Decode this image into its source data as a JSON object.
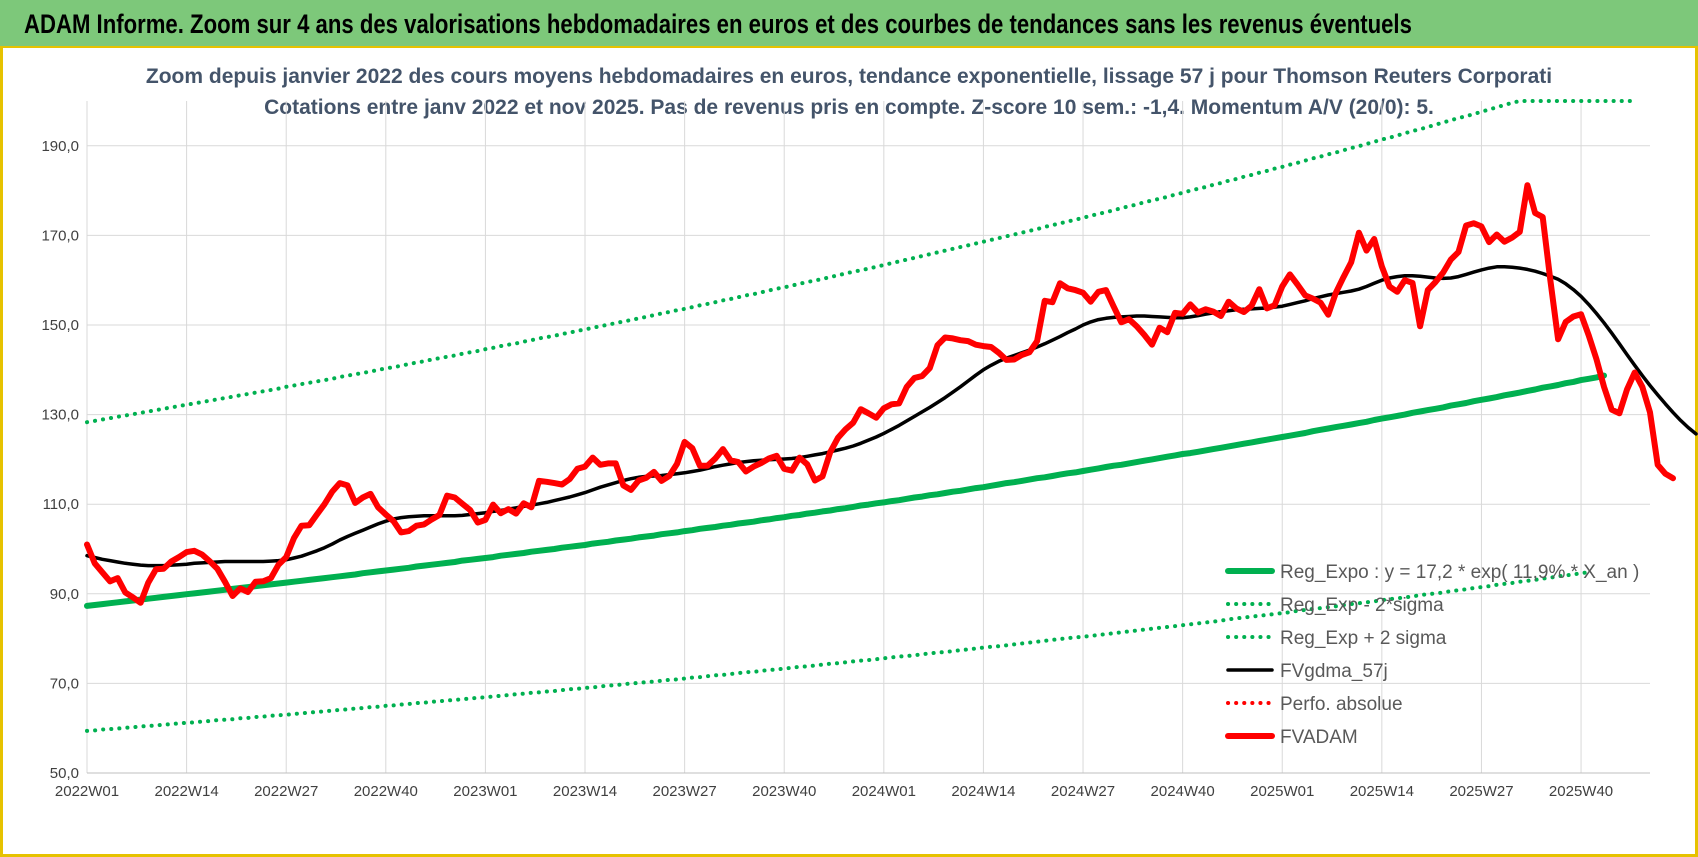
{
  "banner": {
    "title": "ADAM Informe. Zoom sur 4 ans des valorisations hebdomadaires en euros et des courbes de tendances sans les revenus éventuels"
  },
  "colors": {
    "banner_bg": "#7dc87a",
    "banner_border": "#e6c200",
    "trend": "#00b050",
    "smooth": "#000000",
    "price": "#ff0000",
    "grid": "#d9d9d9",
    "title": "#44546a"
  },
  "chart_data": {
    "type": "line",
    "title": "Zoom depuis janvier 2022 des cours moyens hebdomadaires en euros, tendance exponentielle, lissage 57 j pour Thomson Reuters Corporati",
    "subtitle": "Cotations entre janv 2022 et nov 2025. Pas de revenus pris en compte. Z-score 10 sem.: -1,4.  Momentum A/V (20/0): 5.",
    "xlabel": "",
    "ylabel": "",
    "ylim": [
      50,
      200
    ],
    "yticks": [
      "50,0",
      "70,0",
      "90,0",
      "110,0",
      "130,0",
      "150,0",
      "170,0",
      "190,0"
    ],
    "ytick_values": [
      50,
      70,
      90,
      110,
      130,
      150,
      170,
      190
    ],
    "xticks": [
      "2022W01",
      "2022W14",
      "2022W27",
      "2022W40",
      "2023W01",
      "2023W14",
      "2023W27",
      "2023W40",
      "2024W01",
      "2024W14",
      "2024W27",
      "2024W40",
      "2025W01",
      "2025W14",
      "2025W27",
      "2025W40"
    ],
    "x_count": 205,
    "x_tick_step": 13,
    "grid": true,
    "legend_position": "bottom-right",
    "series": [
      {
        "name": "Reg_Expo : y = 17,2 * exp( 11,9% *  X_an )",
        "style": "solid-thick",
        "color": "#00b050",
        "values": [
          87.3,
          87.5,
          87.7,
          87.9,
          88.1,
          88.3,
          88.5,
          88.7,
          88.9,
          89.1,
          89.3,
          89.5,
          89.7,
          89.9,
          90.1,
          90.3,
          90.5,
          90.7,
          90.9,
          91.1,
          91.3,
          91.5,
          91.7,
          91.9,
          92.1,
          92.3,
          92.5,
          92.7,
          92.9,
          93.1,
          93.3,
          93.5,
          93.7,
          93.9,
          94.1,
          94.3,
          94.6,
          94.8,
          95.0,
          95.2,
          95.4,
          95.6,
          95.8,
          96.1,
          96.3,
          96.5,
          96.7,
          96.9,
          97.1,
          97.4,
          97.6,
          97.8,
          98.0,
          98.2,
          98.5,
          98.7,
          98.9,
          99.1,
          99.4,
          99.6,
          99.8,
          100.0,
          100.3,
          100.5,
          100.7,
          100.9,
          101.2,
          101.4,
          101.6,
          101.9,
          102.1,
          102.3,
          102.6,
          102.8,
          103.0,
          103.3,
          103.5,
          103.7,
          104.0,
          104.2,
          104.5,
          104.7,
          104.9,
          105.2,
          105.4,
          105.7,
          105.9,
          106.1,
          106.4,
          106.6,
          106.9,
          107.1,
          107.4,
          107.6,
          107.9,
          108.1,
          108.4,
          108.6,
          108.9,
          109.1,
          109.4,
          109.7,
          109.9,
          110.2,
          110.4,
          110.7,
          110.9,
          111.2,
          111.5,
          111.7,
          112.0,
          112.2,
          112.5,
          112.8,
          113.0,
          113.3,
          113.6,
          113.8,
          114.1,
          114.4,
          114.7,
          114.9,
          115.2,
          115.5,
          115.8,
          116.0,
          116.3,
          116.6,
          116.9,
          117.1,
          117.4,
          117.7,
          118.0,
          118.3,
          118.6,
          118.8,
          119.1,
          119.4,
          119.7,
          120.0,
          120.3,
          120.6,
          120.9,
          121.2,
          121.4,
          121.7,
          122.0,
          122.3,
          122.6,
          122.9,
          123.2,
          123.5,
          123.8,
          124.1,
          124.4,
          124.7,
          125.0,
          125.3,
          125.6,
          125.9,
          126.3,
          126.6,
          126.9,
          127.2,
          127.5,
          127.8,
          128.1,
          128.4,
          128.8,
          129.1,
          129.4,
          129.7,
          130.0,
          130.4,
          130.7,
          131.0,
          131.3,
          131.6,
          132.0,
          132.3,
          132.6,
          133.0,
          133.3,
          133.6,
          133.9,
          134.3,
          134.6,
          134.9,
          135.3,
          135.6,
          136.0,
          136.3,
          136.6,
          137.0,
          137.3,
          137.7,
          138.0,
          138.3,
          138.7
        ]
      },
      {
        "name": "Reg_Exp - 2*sigma",
        "style": "dotted",
        "color": "#00b050",
        "values": [
          59.4,
          59.5,
          59.7,
          59.8,
          59.9,
          60.1,
          60.2,
          60.4,
          60.5,
          60.6,
          60.8,
          60.9,
          61.1,
          61.2,
          61.3,
          61.5,
          61.6,
          61.8,
          61.9,
          62.0,
          62.2,
          62.3,
          62.5,
          62.6,
          62.8,
          62.9,
          63.0,
          63.2,
          63.3,
          63.5,
          63.6,
          63.8,
          63.9,
          64.1,
          64.2,
          64.4,
          64.5,
          64.7,
          64.8,
          65.0,
          65.1,
          65.3,
          65.4,
          65.6,
          65.7,
          65.9,
          66.0,
          66.2,
          66.3,
          66.5,
          66.6,
          66.8,
          66.9,
          67.1,
          67.2,
          67.4,
          67.6,
          67.7,
          67.9,
          68.0,
          68.2,
          68.3,
          68.5,
          68.7,
          68.8,
          69.0,
          69.1,
          69.3,
          69.5,
          69.6,
          69.8,
          70.0,
          70.1,
          70.3,
          70.4,
          70.6,
          70.8,
          70.9,
          71.1,
          71.3,
          71.4,
          71.6,
          71.8,
          71.9,
          72.1,
          72.3,
          72.5,
          72.6,
          72.8,
          73.0,
          73.1,
          73.3,
          73.5,
          73.7,
          73.8,
          74.0,
          74.2,
          74.4,
          74.5,
          74.7,
          74.9,
          75.1,
          75.2,
          75.4,
          75.6,
          75.8,
          76.0,
          76.1,
          76.3,
          76.5,
          76.7,
          76.9,
          77.0,
          77.2,
          77.4,
          77.6,
          77.8,
          78.0,
          78.2,
          78.3,
          78.5,
          78.7,
          78.9,
          79.1,
          79.3,
          79.5,
          79.7,
          79.9,
          80.1,
          80.3,
          80.4,
          80.6,
          80.8,
          81.0,
          81.2,
          81.4,
          81.6,
          81.8,
          82.0,
          82.2,
          82.4,
          82.6,
          82.8,
          83.0,
          83.2,
          83.4,
          83.6,
          83.8,
          84.0,
          84.3,
          84.5,
          84.7,
          84.9,
          85.1,
          85.3,
          85.5,
          85.7,
          85.9,
          86.2,
          86.4,
          86.6,
          86.8,
          87.0,
          87.2,
          87.5,
          87.7,
          87.9,
          88.1,
          88.3,
          88.6,
          88.8,
          89.0,
          89.2,
          89.4,
          89.7,
          89.9,
          90.1,
          90.3,
          90.6,
          90.8,
          91.0,
          91.3,
          91.5,
          91.7,
          92.0,
          92.2,
          92.4,
          92.7,
          92.9,
          93.1,
          93.4,
          93.6,
          93.9,
          94.1,
          94.3,
          94.6,
          94.8
        ]
      },
      {
        "name": "Reg_Exp + 2 sigma",
        "style": "dotted",
        "color": "#00b050",
        "values": [
          128.3,
          128.6,
          128.9,
          129.2,
          129.5,
          129.8,
          130.1,
          130.4,
          130.7,
          131.0,
          131.3,
          131.6,
          131.9,
          132.2,
          132.5,
          132.8,
          133.1,
          133.4,
          133.7,
          134.0,
          134.3,
          134.6,
          134.9,
          135.2,
          135.5,
          135.8,
          136.2,
          136.5,
          136.8,
          137.1,
          137.4,
          137.7,
          138.0,
          138.4,
          138.7,
          139.0,
          139.3,
          139.6,
          140.0,
          140.3,
          140.6,
          140.9,
          141.3,
          141.6,
          141.9,
          142.3,
          142.6,
          142.9,
          143.2,
          143.6,
          143.9,
          144.2,
          144.6,
          144.9,
          145.3,
          145.6,
          145.9,
          146.3,
          146.6,
          147.0,
          147.3,
          147.6,
          148.0,
          148.3,
          148.7,
          149.0,
          149.4,
          149.7,
          150.1,
          150.4,
          150.8,
          151.1,
          151.5,
          151.8,
          152.2,
          152.6,
          152.9,
          153.3,
          153.6,
          154.0,
          154.4,
          154.7,
          155.1,
          155.5,
          155.8,
          156.2,
          156.6,
          156.9,
          157.3,
          157.7,
          158.1,
          158.4,
          158.8,
          159.2,
          159.6,
          159.9,
          160.3,
          160.7,
          161.1,
          161.5,
          161.9,
          162.2,
          162.6,
          163.0,
          163.4,
          163.8,
          164.2,
          164.6,
          165.0,
          165.4,
          165.8,
          166.2,
          166.6,
          167.0,
          167.4,
          167.8,
          168.2,
          168.6,
          169.0,
          169.4,
          169.8,
          170.2,
          170.6,
          171.0,
          171.4,
          171.9,
          172.3,
          172.7,
          173.1,
          173.5,
          173.9,
          174.4,
          174.8,
          175.2,
          175.6,
          176.1,
          176.5,
          176.9,
          177.4,
          177.8,
          178.2,
          178.6,
          179.1,
          179.5,
          180.0,
          180.4,
          180.8,
          181.3,
          181.7,
          182.2,
          182.6,
          183.1,
          183.5,
          184.0,
          184.4,
          184.9,
          185.3,
          185.8,
          186.2,
          186.7,
          187.2,
          187.6,
          188.1,
          188.5,
          189.0,
          189.5,
          189.9,
          190.4,
          190.9,
          191.4,
          191.8,
          192.3,
          192.8,
          193.3,
          193.7,
          194.2,
          194.7,
          195.2,
          195.7,
          196.2,
          196.6,
          197.1,
          197.6,
          198.1,
          198.6,
          199.1,
          199.6,
          200.0,
          200.0,
          200.0,
          200.0,
          200.0,
          200.0,
          200.0,
          200.0,
          200.0,
          200.0,
          200.0,
          200.0,
          200.0,
          200.0,
          200.0,
          200.0
        ]
      },
      {
        "name": "FVgdma_57j",
        "style": "solid",
        "color": "#000000",
        "values": [
          98.5,
          98.1,
          97.7,
          97.4,
          97.1,
          96.8,
          96.6,
          96.4,
          96.3,
          96.3,
          96.3,
          96.4,
          96.5,
          96.6,
          96.8,
          96.9,
          97.0,
          97.1,
          97.2,
          97.2,
          97.2,
          97.2,
          97.2,
          97.2,
          97.3,
          97.4,
          97.6,
          98.0,
          98.4,
          99.0,
          99.6,
          100.3,
          101.1,
          102.0,
          102.8,
          103.5,
          104.2,
          104.9,
          105.6,
          106.2,
          106.7,
          107.0,
          107.2,
          107.3,
          107.4,
          107.4,
          107.4,
          107.4,
          107.4,
          107.5,
          107.7,
          107.9,
          108.1,
          108.4,
          108.6,
          108.9,
          109.2,
          109.5,
          109.8,
          110.1,
          110.4,
          110.8,
          111.2,
          111.6,
          112.1,
          112.6,
          113.2,
          113.8,
          114.3,
          114.8,
          115.3,
          115.7,
          116.0,
          116.2,
          116.3,
          116.4,
          116.6,
          116.8,
          117.0,
          117.3,
          117.6,
          118.0,
          118.4,
          118.7,
          119.0,
          119.3,
          119.5,
          119.7,
          119.8,
          119.9,
          120.0,
          120.1,
          120.2,
          120.4,
          120.7,
          121.0,
          121.3,
          121.7,
          122.1,
          122.5,
          123.0,
          123.6,
          124.3,
          125.0,
          125.8,
          126.7,
          127.6,
          128.6,
          129.6,
          130.6,
          131.6,
          132.7,
          133.8,
          135.0,
          136.2,
          137.5,
          138.8,
          140.0,
          141.0,
          141.9,
          142.6,
          143.2,
          143.8,
          144.4,
          145.1,
          145.8,
          146.6,
          147.4,
          148.3,
          149.1,
          150.0,
          150.7,
          151.2,
          151.5,
          151.7,
          151.8,
          151.9,
          152.0,
          152.0,
          151.9,
          151.8,
          151.7,
          151.6,
          151.6,
          151.8,
          152.1,
          152.4,
          152.7,
          153.0,
          153.2,
          153.4,
          153.5,
          153.6,
          153.7,
          153.8,
          154.0,
          154.2,
          154.6,
          155.0,
          155.4,
          155.9,
          156.3,
          156.7,
          157.0,
          157.3,
          157.6,
          158.0,
          158.6,
          159.3,
          160.0,
          160.5,
          160.8,
          161.0,
          161.0,
          160.9,
          160.7,
          160.5,
          160.4,
          160.5,
          160.8,
          161.3,
          161.8,
          162.3,
          162.7,
          163.0,
          163.0,
          162.9,
          162.7,
          162.4,
          162.0,
          161.5,
          160.9,
          160.2,
          159.2,
          157.9,
          156.4,
          154.6,
          152.6,
          150.5,
          148.2,
          145.8,
          143.4,
          141.0,
          138.7,
          136.5,
          134.4,
          132.4,
          130.5,
          128.7,
          127.1,
          125.7
        ]
      },
      {
        "name": "Perfo. absolue",
        "style": "dotted",
        "color": "#ff0000",
        "values": []
      },
      {
        "name": "FVADAM",
        "style": "solid-thick",
        "color": "#ff0000",
        "values": [
          101.0,
          96.8,
          94.8,
          92.8,
          93.5,
          90.3,
          89.2,
          88.0,
          92.5,
          95.5,
          95.6,
          97.2,
          98.2,
          99.3,
          99.6,
          98.8,
          97.3,
          95.6,
          92.7,
          89.5,
          91.2,
          90.4,
          92.7,
          92.8,
          93.5,
          96.5,
          98.2,
          102.4,
          105.2,
          105.3,
          107.7,
          110.0,
          112.8,
          114.7,
          114.2,
          110.3,
          111.5,
          112.3,
          109.3,
          107.7,
          106.2,
          103.7,
          104.0,
          105.2,
          105.5,
          106.6,
          107.6,
          111.9,
          111.5,
          110.1,
          108.7,
          105.9,
          106.5,
          109.9,
          108.0,
          108.9,
          107.9,
          110.2,
          109.3,
          115.2,
          115.0,
          114.7,
          114.4,
          115.6,
          117.9,
          118.4,
          120.4,
          118.8,
          119.1,
          119.1,
          114.2,
          113.2,
          115.3,
          115.9,
          117.2,
          115.2,
          116.3,
          119.0,
          123.9,
          122.5,
          118.6,
          118.6,
          120.2,
          122.3,
          119.8,
          119.4,
          117.3,
          118.4,
          119.2,
          120.2,
          120.8,
          117.9,
          117.5,
          120.4,
          118.9,
          115.3,
          116.2,
          121.6,
          124.8,
          126.7,
          128.2,
          131.2,
          130.3,
          129.3,
          131.4,
          132.3,
          132.5,
          136.2,
          138.2,
          138.6,
          140.4,
          145.5,
          147.2,
          147.0,
          146.6,
          146.4,
          145.6,
          145.3,
          145.1,
          143.8,
          142.2,
          142.3,
          143.3,
          143.9,
          146.4,
          155.4,
          155.1,
          159.3,
          158.2,
          157.8,
          157.2,
          155.2,
          157.4,
          157.8,
          154.1,
          150.6,
          151.3,
          149.7,
          147.8,
          145.6,
          149.4,
          148.4,
          152.7,
          152.5,
          154.6,
          152.8,
          153.5,
          153.0,
          152.0,
          155.2,
          153.7,
          152.9,
          154.3,
          158.0,
          153.7,
          154.4,
          158.6,
          161.3,
          159.0,
          156.6,
          155.9,
          155.0,
          152.3,
          157.2,
          160.7,
          164.0,
          170.6,
          166.6,
          169.2,
          163.1,
          158.6,
          157.4,
          160.0,
          159.4,
          149.7,
          157.8,
          159.6,
          161.7,
          164.6,
          166.3,
          172.2,
          172.7,
          172.0,
          168.5,
          170.2,
          168.6,
          169.5,
          170.8,
          181.2,
          175.0,
          174.1,
          159.9,
          146.8,
          150.7,
          151.9,
          152.4,
          147.7,
          142.4,
          136.2,
          131.1,
          130.3,
          135.6,
          139.4,
          136.2,
          130.5,
          118.8,
          116.8,
          115.8
        ]
      }
    ]
  }
}
